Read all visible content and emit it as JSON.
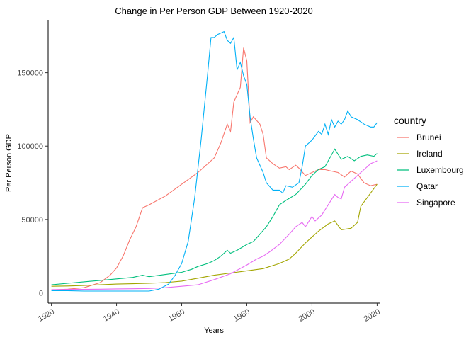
{
  "chart_data": {
    "type": "line",
    "title": "Change in Per Person GDP Between 1920-2020",
    "xlabel": "Years",
    "ylabel": "Per Person GDP",
    "xlim": [
      1919,
      2021
    ],
    "ylim": [
      -7000,
      186000
    ],
    "xticks": [
      1920,
      1940,
      1960,
      1980,
      2000,
      2020
    ],
    "yticks": [
      0,
      50000,
      100000,
      150000
    ],
    "grid": false,
    "legend": {
      "title": "country",
      "position": "right"
    },
    "series": [
      {
        "name": "Brunei",
        "color": "#F8766D",
        "points": [
          [
            1920,
            2000
          ],
          [
            1925,
            2500
          ],
          [
            1930,
            3500
          ],
          [
            1935,
            7000
          ],
          [
            1938,
            12000
          ],
          [
            1940,
            17000
          ],
          [
            1942,
            25000
          ],
          [
            1944,
            36000
          ],
          [
            1946,
            45000
          ],
          [
            1948,
            58000
          ],
          [
            1950,
            60000
          ],
          [
            1955,
            66000
          ],
          [
            1960,
            74000
          ],
          [
            1965,
            82000
          ],
          [
            1968,
            88000
          ],
          [
            1970,
            92000
          ],
          [
            1972,
            102000
          ],
          [
            1974,
            115000
          ],
          [
            1975,
            110000
          ],
          [
            1976,
            130000
          ],
          [
            1977,
            135000
          ],
          [
            1978,
            140000
          ],
          [
            1979,
            167000
          ],
          [
            1980,
            158000
          ],
          [
            1981,
            116000
          ],
          [
            1982,
            120000
          ],
          [
            1984,
            115000
          ],
          [
            1985,
            108000
          ],
          [
            1986,
            92000
          ],
          [
            1988,
            88000
          ],
          [
            1990,
            85000
          ],
          [
            1992,
            86000
          ],
          [
            1993,
            84000
          ],
          [
            1995,
            87000
          ],
          [
            1996,
            85000
          ],
          [
            1998,
            80000
          ],
          [
            2000,
            82000
          ],
          [
            2002,
            84000
          ],
          [
            2004,
            84000
          ],
          [
            2006,
            83000
          ],
          [
            2008,
            82000
          ],
          [
            2010,
            79000
          ],
          [
            2012,
            83000
          ],
          [
            2014,
            81000
          ],
          [
            2016,
            75000
          ],
          [
            2018,
            73000
          ],
          [
            2020,
            74000
          ]
        ]
      },
      {
        "name": "Ireland",
        "color": "#A3A500",
        "points": [
          [
            1920,
            4500
          ],
          [
            1925,
            4700
          ],
          [
            1930,
            5000
          ],
          [
            1935,
            5500
          ],
          [
            1940,
            6000
          ],
          [
            1945,
            6200
          ],
          [
            1950,
            6500
          ],
          [
            1955,
            7000
          ],
          [
            1960,
            8000
          ],
          [
            1965,
            10000
          ],
          [
            1970,
            12000
          ],
          [
            1975,
            13500
          ],
          [
            1980,
            15000
          ],
          [
            1985,
            16500
          ],
          [
            1990,
            20000
          ],
          [
            1993,
            23000
          ],
          [
            1995,
            27000
          ],
          [
            1998,
            34000
          ],
          [
            2000,
            38000
          ],
          [
            2002,
            42000
          ],
          [
            2005,
            47000
          ],
          [
            2007,
            49000
          ],
          [
            2009,
            43000
          ],
          [
            2012,
            44000
          ],
          [
            2014,
            48000
          ],
          [
            2015,
            59000
          ],
          [
            2017,
            65000
          ],
          [
            2019,
            71000
          ],
          [
            2020,
            74000
          ]
        ]
      },
      {
        "name": "Luxembourg",
        "color": "#00BF7D",
        "points": [
          [
            1920,
            5500
          ],
          [
            1925,
            6500
          ],
          [
            1930,
            7500
          ],
          [
            1935,
            8500
          ],
          [
            1940,
            9500
          ],
          [
            1945,
            10500
          ],
          [
            1948,
            12000
          ],
          [
            1950,
            11000
          ],
          [
            1955,
            12500
          ],
          [
            1960,
            14000
          ],
          [
            1963,
            16000
          ],
          [
            1965,
            18000
          ],
          [
            1968,
            20000
          ],
          [
            1970,
            22000
          ],
          [
            1972,
            25000
          ],
          [
            1974,
            29000
          ],
          [
            1975,
            27000
          ],
          [
            1977,
            29000
          ],
          [
            1980,
            33000
          ],
          [
            1982,
            35000
          ],
          [
            1984,
            40000
          ],
          [
            1986,
            45000
          ],
          [
            1988,
            52000
          ],
          [
            1990,
            60000
          ],
          [
            1992,
            63000
          ],
          [
            1995,
            67000
          ],
          [
            1998,
            74000
          ],
          [
            2000,
            80000
          ],
          [
            2002,
            84000
          ],
          [
            2004,
            86000
          ],
          [
            2005,
            90000
          ],
          [
            2007,
            98000
          ],
          [
            2009,
            91000
          ],
          [
            2011,
            93000
          ],
          [
            2013,
            90000
          ],
          [
            2015,
            93000
          ],
          [
            2017,
            94000
          ],
          [
            2019,
            93000
          ],
          [
            2020,
            95000
          ]
        ]
      },
      {
        "name": "Qatar",
        "color": "#00B0F6",
        "points": [
          [
            1920,
            1500
          ],
          [
            1925,
            1500
          ],
          [
            1930,
            1200
          ],
          [
            1935,
            1200
          ],
          [
            1940,
            1200
          ],
          [
            1945,
            1200
          ],
          [
            1950,
            1200
          ],
          [
            1953,
            2500
          ],
          [
            1956,
            6000
          ],
          [
            1958,
            12000
          ],
          [
            1960,
            20000
          ],
          [
            1962,
            35000
          ],
          [
            1964,
            65000
          ],
          [
            1966,
            105000
          ],
          [
            1968,
            150000
          ],
          [
            1969,
            174000
          ],
          [
            1970,
            174000
          ],
          [
            1971,
            176000
          ],
          [
            1972,
            177000
          ],
          [
            1973,
            178000
          ],
          [
            1974,
            172000
          ],
          [
            1975,
            170000
          ],
          [
            1976,
            174000
          ],
          [
            1977,
            152000
          ],
          [
            1978,
            157000
          ],
          [
            1979,
            148000
          ],
          [
            1980,
            142000
          ],
          [
            1981,
            120000
          ],
          [
            1982,
            105000
          ],
          [
            1983,
            92000
          ],
          [
            1985,
            82000
          ],
          [
            1986,
            75000
          ],
          [
            1988,
            70000
          ],
          [
            1990,
            70000
          ],
          [
            1991,
            68000
          ],
          [
            1992,
            73000
          ],
          [
            1994,
            72000
          ],
          [
            1996,
            75000
          ],
          [
            1997,
            86000
          ],
          [
            1998,
            100000
          ],
          [
            2000,
            104000
          ],
          [
            2002,
            110000
          ],
          [
            2003,
            108000
          ],
          [
            2004,
            115000
          ],
          [
            2005,
            108000
          ],
          [
            2006,
            118000
          ],
          [
            2007,
            113000
          ],
          [
            2008,
            117000
          ],
          [
            2009,
            115000
          ],
          [
            2010,
            118000
          ],
          [
            2011,
            124000
          ],
          [
            2012,
            120000
          ],
          [
            2014,
            118000
          ],
          [
            2016,
            115000
          ],
          [
            2018,
            113000
          ],
          [
            2019,
            113000
          ],
          [
            2020,
            116000
          ]
        ]
      },
      {
        "name": "Singapore",
        "color": "#E76BF3",
        "points": [
          [
            1920,
            2200
          ],
          [
            1925,
            2300
          ],
          [
            1930,
            2400
          ],
          [
            1935,
            2500
          ],
          [
            1940,
            2700
          ],
          [
            1945,
            2800
          ],
          [
            1950,
            3000
          ],
          [
            1955,
            3500
          ],
          [
            1960,
            4500
          ],
          [
            1965,
            5500
          ],
          [
            1970,
            9000
          ],
          [
            1975,
            13000
          ],
          [
            1980,
            19000
          ],
          [
            1983,
            23000
          ],
          [
            1985,
            25000
          ],
          [
            1987,
            28000
          ],
          [
            1990,
            33000
          ],
          [
            1993,
            40000
          ],
          [
            1995,
            45000
          ],
          [
            1997,
            48000
          ],
          [
            1998,
            45000
          ],
          [
            2000,
            52000
          ],
          [
            2001,
            49000
          ],
          [
            2003,
            53000
          ],
          [
            2005,
            60000
          ],
          [
            2007,
            67000
          ],
          [
            2008,
            65000
          ],
          [
            2009,
            64000
          ],
          [
            2010,
            72000
          ],
          [
            2012,
            76000
          ],
          [
            2014,
            80000
          ],
          [
            2016,
            84000
          ],
          [
            2018,
            88000
          ],
          [
            2020,
            90000
          ]
        ]
      }
    ]
  }
}
